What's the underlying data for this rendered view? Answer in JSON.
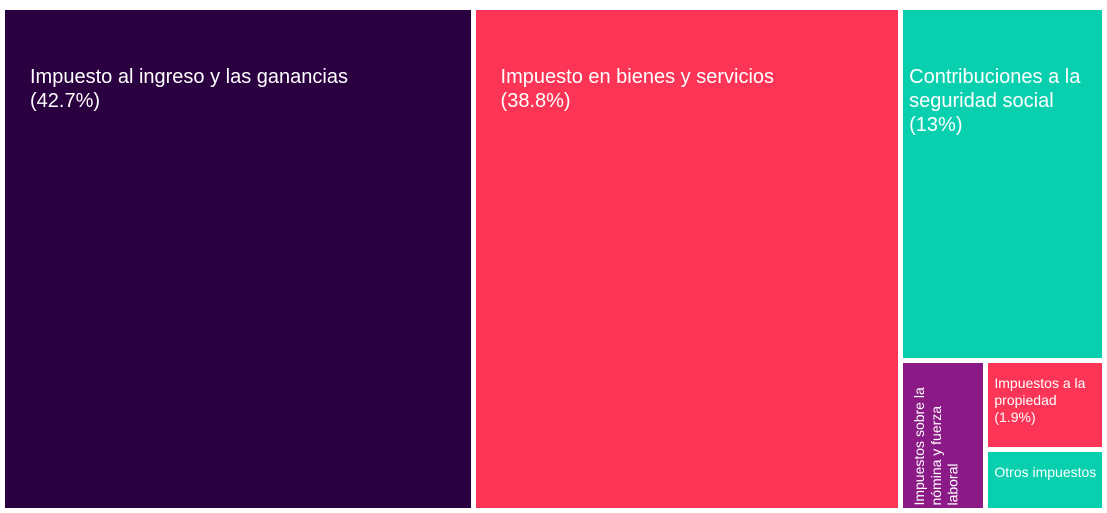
{
  "chart_data": {
    "type": "treemap",
    "categories": [
      "Impuesto al ingreso y las ganancias",
      "Impuesto en bienes y servicios",
      "Contribuciones a la seguridad social",
      "Impuestos sobre la nómina y fuerza laboral",
      "Impuestos a la propiedad",
      "Otros impuestos"
    ],
    "values": [
      42.7,
      38.8,
      13,
      2.3,
      1.9,
      1.3
    ],
    "value_labels": [
      "(42.7%)",
      "(38.8%)",
      "(13%)",
      null,
      "(1.9%)",
      null
    ],
    "colors": [
      "#2a0040",
      "#fc3455",
      "#08cfae",
      "#8b1a86",
      "#fc3455",
      "#08cfae"
    ]
  }
}
